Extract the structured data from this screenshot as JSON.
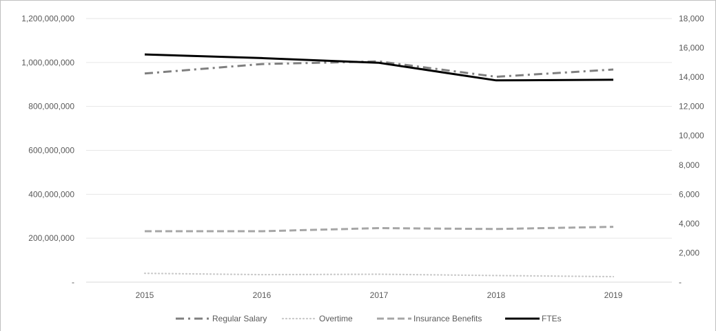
{
  "chart_data": {
    "type": "line",
    "title": "",
    "xlabel": "",
    "ylabel": "",
    "categories": [
      "2015",
      "2016",
      "2017",
      "2018",
      "2019"
    ],
    "y_left": {
      "min": 0,
      "max": 1200000000,
      "ticks": [
        {
          "value": 0,
          "label": "-"
        },
        {
          "value": 200000000,
          "label": "200,000,000"
        },
        {
          "value": 400000000,
          "label": "400,000,000"
        },
        {
          "value": 600000000,
          "label": "600,000,000"
        },
        {
          "value": 800000000,
          "label": "800,000,000"
        },
        {
          "value": 1000000000,
          "label": "1,000,000,000"
        },
        {
          "value": 1200000000,
          "label": "1,200,000,000"
        }
      ]
    },
    "y_right": {
      "min": 0,
      "max": 18000,
      "ticks": [
        {
          "value": 0,
          "label": "-"
        },
        {
          "value": 2000,
          "label": "2,000"
        },
        {
          "value": 4000,
          "label": "4,000"
        },
        {
          "value": 6000,
          "label": "6,000"
        },
        {
          "value": 8000,
          "label": "8,000"
        },
        {
          "value": 10000,
          "label": "10,000"
        },
        {
          "value": 12000,
          "label": "12,000"
        },
        {
          "value": 14000,
          "label": "14,000"
        },
        {
          "value": 16000,
          "label": "16,000"
        },
        {
          "value": 18000,
          "label": "18,000"
        }
      ]
    },
    "grid": true,
    "legend_position": "bottom",
    "series": [
      {
        "name": "Regular Salary",
        "axis": "left",
        "style": "dashdot",
        "color": "#7f7f7f",
        "values": [
          950000000,
          993000000,
          1005000000,
          935000000,
          968000000
        ]
      },
      {
        "name": "Overtime",
        "axis": "left",
        "style": "dotted",
        "color": "#c9c9c9",
        "values": [
          40000000,
          34000000,
          36000000,
          30000000,
          25000000
        ]
      },
      {
        "name": "Insurance Benefits",
        "axis": "left",
        "style": "dashed",
        "color": "#a6a6a6",
        "values": [
          232000000,
          232000000,
          246000000,
          242000000,
          252000000
        ]
      },
      {
        "name": "FTEs",
        "axis": "right",
        "style": "solid",
        "color": "#000000",
        "values": [
          15550,
          15300,
          14980,
          13780,
          13820
        ]
      }
    ]
  }
}
